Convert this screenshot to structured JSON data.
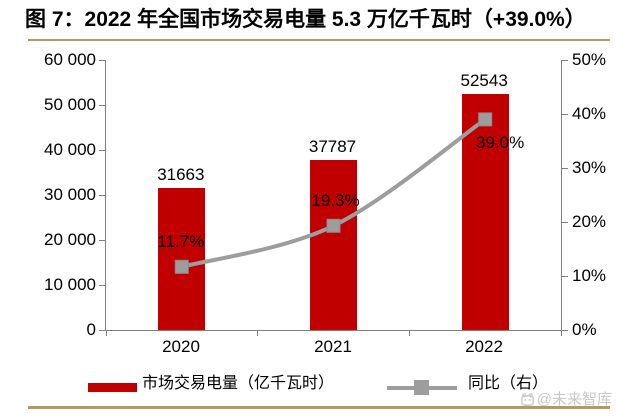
{
  "title": "图 7：2022 年全国市场交易电量 5.3 万亿千瓦时（+39.0%）",
  "watermark_text": "@未来智库",
  "colors": {
    "bar": "#c00000",
    "line": "#9d9d9d",
    "marker": "#9d9d9d",
    "axis": "#808080",
    "gold_rule": "#b5985a",
    "watermark_gray": "#c8c8c8",
    "text": "#000000"
  },
  "chart_data": {
    "type": "bar",
    "subtype": "bar+line dual-axis combo",
    "title": "图 7：2022 年全国市场交易电量 5.3 万亿千瓦时（+39.0%）",
    "categories": [
      "2020",
      "2021",
      "2022"
    ],
    "series": [
      {
        "name": "市场交易电量（亿千瓦时）",
        "type": "bar",
        "axis": "left",
        "values": [
          31663,
          37787,
          52543
        ],
        "labels": [
          "31663",
          "37787",
          "52543"
        ]
      },
      {
        "name": "同比（右）",
        "type": "line",
        "axis": "right",
        "values_percent": [
          11.7,
          19.3,
          39.0
        ],
        "labels": [
          "11.7%",
          "19.3%",
          "39.0%"
        ]
      }
    ],
    "left_axis": {
      "min": 0,
      "max": 60000,
      "ticks_top_to_bottom": [
        "60 000",
        "50 000",
        "40 000",
        "30 000",
        "20 000",
        "10 000",
        "0"
      ]
    },
    "right_axis": {
      "min": "0%",
      "max": "50%",
      "ticks_top_to_bottom": [
        "50%",
        "40%",
        "30%",
        "20%",
        "10%",
        "0%"
      ]
    },
    "legend": {
      "position": "bottom",
      "items": [
        "市场交易电量（亿千瓦时）",
        "同比（右）"
      ]
    },
    "grid": "off",
    "smoothed_line": true
  }
}
